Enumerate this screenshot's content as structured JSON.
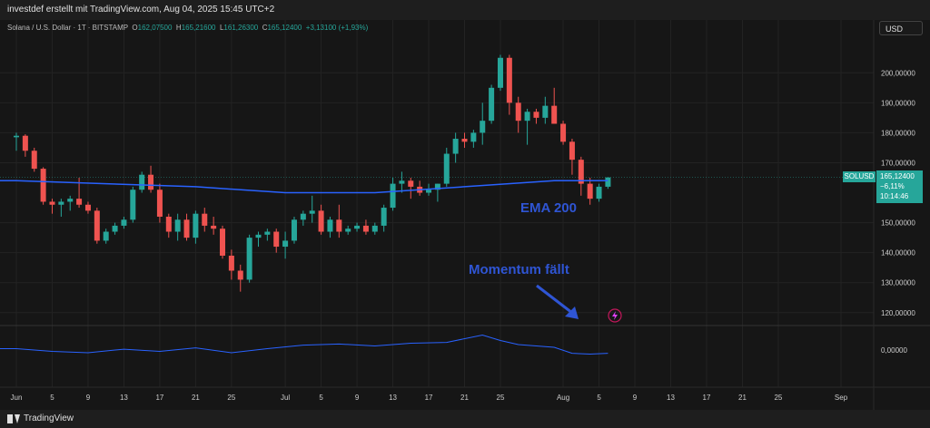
{
  "header": {
    "attribution": "investdef erstellt mit TradingView.com, Aug 04, 2025 15:45 UTC+2"
  },
  "legend": {
    "symbol_line": "Solana / U.S. Dollar · 1T · BITSTAMP",
    "open_label": "O",
    "open": "162,07500",
    "high_label": "H",
    "high": "165,21600",
    "low_label": "L",
    "low": "161,26300",
    "close_label": "C",
    "close": "165,12400",
    "change": "+3,13100 (+1,93%)"
  },
  "currency_button": "USD",
  "price_tag": {
    "symbol": "SOLUSD",
    "price": "165,12400",
    "change": "−6,11%",
    "countdown": "10:14:46"
  },
  "footer": {
    "logo_text": "TradingView"
  },
  "colors": {
    "up": "#26a69a",
    "down": "#ef5350",
    "ema": "#2962ff",
    "annotation": "#2f55d4",
    "background": "#161616"
  },
  "chart_data": [
    {
      "type": "candlestick",
      "title": "",
      "series_ema_label": "EMA 200",
      "y_ticks": [
        "200,00000",
        "190,00000",
        "180,00000",
        "170,00000",
        "150,00000",
        "140,00000",
        "130,00000",
        "120,00000"
      ],
      "ylim": [
        116,
        214
      ],
      "x_ticks": [
        "Jun",
        "5",
        "9",
        "13",
        "17",
        "21",
        "25",
        "Jul",
        "5",
        "9",
        "13",
        "17",
        "21",
        "25",
        "Aug",
        "5",
        "9",
        "13",
        "17",
        "21",
        "25",
        "Sep"
      ],
      "x_tick_days": [
        0,
        4,
        8,
        12,
        16,
        20,
        24,
        30,
        34,
        38,
        42,
        46,
        50,
        54,
        61,
        65,
        69,
        73,
        77,
        81,
        85,
        92
      ],
      "x_start": "2025-05-30",
      "candles": [
        {
          "d": 0,
          "o": 178.5,
          "h": 180,
          "l": 174,
          "c": 179
        },
        {
          "d": 1,
          "o": 179,
          "h": 179.5,
          "l": 172,
          "c": 174
        },
        {
          "d": 2,
          "o": 174,
          "h": 175,
          "l": 167,
          "c": 168
        },
        {
          "d": 3,
          "o": 168,
          "h": 168.5,
          "l": 156,
          "c": 157
        },
        {
          "d": 4,
          "o": 157,
          "h": 158,
          "l": 153,
          "c": 156
        },
        {
          "d": 5,
          "o": 156,
          "h": 158,
          "l": 152,
          "c": 157
        },
        {
          "d": 6,
          "o": 157,
          "h": 159,
          "l": 154,
          "c": 158
        },
        {
          "d": 7,
          "o": 158,
          "h": 165,
          "l": 155,
          "c": 156
        },
        {
          "d": 8,
          "o": 156,
          "h": 157,
          "l": 153,
          "c": 154
        },
        {
          "d": 9,
          "o": 154,
          "h": 155,
          "l": 143,
          "c": 144
        },
        {
          "d": 10,
          "o": 144,
          "h": 148,
          "l": 143,
          "c": 147
        },
        {
          "d": 11,
          "o": 147,
          "h": 150,
          "l": 146,
          "c": 149
        },
        {
          "d": 12,
          "o": 149,
          "h": 152,
          "l": 148,
          "c": 151
        },
        {
          "d": 13,
          "o": 151,
          "h": 162,
          "l": 150,
          "c": 161
        },
        {
          "d": 14,
          "o": 161,
          "h": 167,
          "l": 160,
          "c": 166
        },
        {
          "d": 15,
          "o": 166,
          "h": 169,
          "l": 160,
          "c": 161
        },
        {
          "d": 16,
          "o": 161,
          "h": 163,
          "l": 150,
          "c": 152
        },
        {
          "d": 17,
          "o": 152,
          "h": 153,
          "l": 145,
          "c": 147
        },
        {
          "d": 18,
          "o": 147,
          "h": 153,
          "l": 144,
          "c": 151
        },
        {
          "d": 19,
          "o": 151,
          "h": 153,
          "l": 144,
          "c": 145
        },
        {
          "d": 20,
          "o": 145,
          "h": 154,
          "l": 143,
          "c": 153
        },
        {
          "d": 21,
          "o": 153,
          "h": 155,
          "l": 147,
          "c": 149
        },
        {
          "d": 22,
          "o": 149,
          "h": 152,
          "l": 146,
          "c": 148
        },
        {
          "d": 23,
          "o": 148,
          "h": 149,
          "l": 138,
          "c": 139
        },
        {
          "d": 24,
          "o": 139,
          "h": 141,
          "l": 131,
          "c": 134
        },
        {
          "d": 25,
          "o": 134,
          "h": 136,
          "l": 127,
          "c": 131
        },
        {
          "d": 26,
          "o": 131,
          "h": 146,
          "l": 130,
          "c": 145
        },
        {
          "d": 27,
          "o": 145,
          "h": 147,
          "l": 142,
          "c": 146
        },
        {
          "d": 28,
          "o": 146,
          "h": 148,
          "l": 144,
          "c": 147
        },
        {
          "d": 29,
          "o": 147,
          "h": 148,
          "l": 140,
          "c": 142
        },
        {
          "d": 30,
          "o": 142,
          "h": 147,
          "l": 138,
          "c": 144
        },
        {
          "d": 31,
          "o": 144,
          "h": 152,
          "l": 143,
          "c": 151
        },
        {
          "d": 32,
          "o": 151,
          "h": 154,
          "l": 149,
          "c": 153
        },
        {
          "d": 33,
          "o": 153,
          "h": 159,
          "l": 150,
          "c": 154
        },
        {
          "d": 34,
          "o": 154,
          "h": 156,
          "l": 146,
          "c": 147
        },
        {
          "d": 35,
          "o": 147,
          "h": 152,
          "l": 145,
          "c": 151
        },
        {
          "d": 36,
          "o": 151,
          "h": 156,
          "l": 145,
          "c": 147
        },
        {
          "d": 37,
          "o": 147,
          "h": 149,
          "l": 146,
          "c": 148
        },
        {
          "d": 38,
          "o": 148,
          "h": 150,
          "l": 147,
          "c": 149
        },
        {
          "d": 39,
          "o": 149,
          "h": 151,
          "l": 146,
          "c": 147
        },
        {
          "d": 40,
          "o": 147,
          "h": 150,
          "l": 146,
          "c": 149
        },
        {
          "d": 41,
          "o": 149,
          "h": 156,
          "l": 147,
          "c": 155
        },
        {
          "d": 42,
          "o": 155,
          "h": 165,
          "l": 154,
          "c": 163
        },
        {
          "d": 43,
          "o": 163,
          "h": 167,
          "l": 160,
          "c": 164
        },
        {
          "d": 44,
          "o": 164,
          "h": 165,
          "l": 158,
          "c": 162
        },
        {
          "d": 45,
          "o": 162,
          "h": 164,
          "l": 159,
          "c": 160
        },
        {
          "d": 46,
          "o": 160,
          "h": 163,
          "l": 159,
          "c": 161
        },
        {
          "d": 47,
          "o": 161,
          "h": 163,
          "l": 157,
          "c": 163
        },
        {
          "d": 48,
          "o": 163,
          "h": 175,
          "l": 162,
          "c": 173
        },
        {
          "d": 49,
          "o": 173,
          "h": 180,
          "l": 170,
          "c": 178
        },
        {
          "d": 50,
          "o": 178,
          "h": 180,
          "l": 175,
          "c": 177
        },
        {
          "d": 51,
          "o": 177,
          "h": 181,
          "l": 175,
          "c": 180
        },
        {
          "d": 52,
          "o": 180,
          "h": 190,
          "l": 176,
          "c": 184
        },
        {
          "d": 53,
          "o": 184,
          "h": 196,
          "l": 183,
          "c": 195
        },
        {
          "d": 54,
          "o": 195,
          "h": 206,
          "l": 194,
          "c": 205
        },
        {
          "d": 55,
          "o": 205,
          "h": 206,
          "l": 186,
          "c": 190
        },
        {
          "d": 56,
          "o": 190,
          "h": 192,
          "l": 180,
          "c": 184
        },
        {
          "d": 57,
          "o": 184,
          "h": 188,
          "l": 176,
          "c": 187
        },
        {
          "d": 58,
          "o": 187,
          "h": 188,
          "l": 183,
          "c": 185
        },
        {
          "d": 59,
          "o": 185,
          "h": 192,
          "l": 183,
          "c": 189
        },
        {
          "d": 60,
          "o": 189,
          "h": 195,
          "l": 183,
          "c": 183
        },
        {
          "d": 61,
          "o": 183,
          "h": 184,
          "l": 176,
          "c": 177
        },
        {
          "d": 62,
          "o": 177,
          "h": 178,
          "l": 166,
          "c": 171
        },
        {
          "d": 63,
          "o": 171,
          "h": 172,
          "l": 159,
          "c": 163
        },
        {
          "d": 64,
          "o": 163,
          "h": 165,
          "l": 156,
          "c": 158
        },
        {
          "d": 65,
          "o": 158,
          "h": 163,
          "l": 157,
          "c": 162
        },
        {
          "d": 66,
          "o": 162,
          "h": 165.2,
          "l": 161.3,
          "c": 165.1
        }
      ],
      "ema": {
        "d": [
          0,
          10,
          20,
          30,
          40,
          50,
          60,
          66
        ],
        "v": [
          164,
          163,
          162,
          160,
          160,
          162,
          164,
          164
        ]
      },
      "oscillator": {
        "label": "0,00000",
        "d": [
          0,
          4,
          8,
          12,
          16,
          20,
          24,
          28,
          32,
          36,
          40,
          44,
          48,
          52,
          54,
          56,
          60,
          62,
          64,
          66
        ],
        "v": [
          0.5,
          -0.5,
          -1,
          0.3,
          -0.5,
          0.8,
          -1,
          0.5,
          1.8,
          2.2,
          1.5,
          2.5,
          2.8,
          5.5,
          3.5,
          2,
          1,
          -1.2,
          -1.5,
          -1.2
        ]
      },
      "annotations": [
        "EMA 200",
        "Momentum fällt"
      ]
    }
  ]
}
